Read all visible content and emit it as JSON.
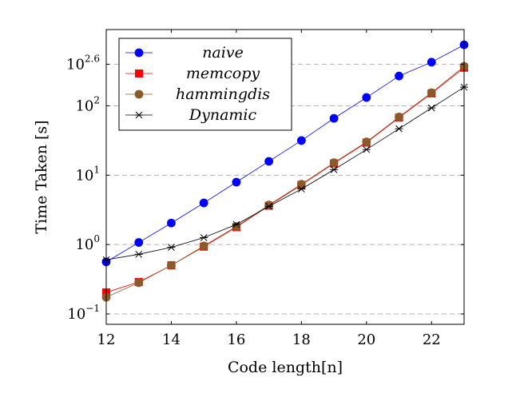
{
  "chart_data": {
    "type": "line",
    "title": "",
    "xlabel": "Code length[n]",
    "ylabel": "Time Taken [s]",
    "yscale": "log10",
    "xlim": [
      12,
      23
    ],
    "ylim_log10": [
      -1.15,
      3.1
    ],
    "grid": "horizontal dashed at y tick positions",
    "legend_position": "top-left",
    "x_ticks": [
      {
        "value": 12,
        "label": "12"
      },
      {
        "value": 14,
        "label": "14"
      },
      {
        "value": 16,
        "label": "16"
      },
      {
        "value": 18,
        "label": "18"
      },
      {
        "value": 20,
        "label": "20"
      },
      {
        "value": 22,
        "label": "22"
      }
    ],
    "y_ticks": [
      {
        "log10": -1,
        "base": "10",
        "exp": "−1"
      },
      {
        "log10": 0,
        "base": "10",
        "exp": "0"
      },
      {
        "log10": 1,
        "base": "10",
        "exp": "1"
      },
      {
        "log10": 2,
        "base": "10",
        "exp": "2"
      },
      {
        "log10": 2.6,
        "base": "10",
        "exp": "2.6"
      }
    ],
    "x": [
      12,
      13,
      14,
      15,
      16,
      17,
      18,
      19,
      20,
      21,
      22,
      23
    ],
    "series": [
      {
        "name": "naive",
        "color": "#0000ff",
        "marker": "circle",
        "log10_values": [
          -0.25,
          0.03,
          0.31,
          0.6,
          0.9,
          1.2,
          1.5,
          1.82,
          2.12,
          2.43,
          2.63,
          2.88
        ]
      },
      {
        "name": "memcopy",
        "color": "#ff0000",
        "marker": "square",
        "log10_values": [
          -0.69,
          -0.54,
          -0.3,
          -0.03,
          0.25,
          0.56,
          0.86,
          1.17,
          1.47,
          1.83,
          2.18,
          2.55
        ]
      },
      {
        "name": "hammingdis",
        "color": "#8b5a2b",
        "marker": "circle",
        "log10_values": [
          -0.76,
          -0.55,
          -0.3,
          -0.02,
          0.26,
          0.57,
          0.87,
          1.18,
          1.48,
          1.84,
          2.19,
          2.57
        ]
      },
      {
        "name": "Dynamic",
        "color": "#000000",
        "marker": "star",
        "log10_values": [
          -0.22,
          -0.14,
          -0.04,
          0.1,
          0.29,
          0.55,
          0.8,
          1.08,
          1.37,
          1.67,
          1.97,
          2.27
        ]
      }
    ]
  }
}
